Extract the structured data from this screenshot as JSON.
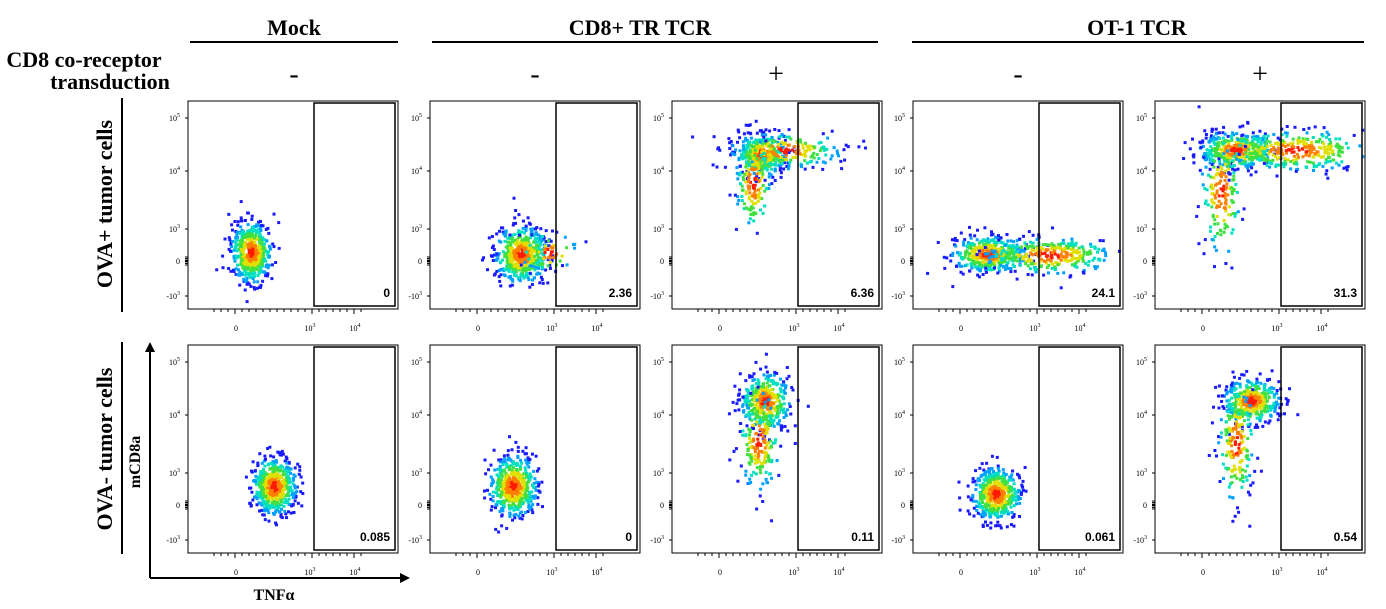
{
  "figure": {
    "row_header": {
      "line1": "CD8 co-receptor",
      "line2": "transduction"
    },
    "groups": [
      {
        "label": "Mock"
      },
      {
        "label": "CD8+ TR TCR"
      },
      {
        "label": "OT-1 TCR"
      }
    ],
    "columns": [
      {
        "group": 0,
        "sign": "-"
      },
      {
        "group": 1,
        "sign": "-"
      },
      {
        "group": 1,
        "sign": "+"
      },
      {
        "group": 2,
        "sign": "-"
      },
      {
        "group": 2,
        "sign": "+"
      }
    ],
    "rows": [
      {
        "label": "OVA+ tumor cells"
      },
      {
        "label": "OVA- tumor cells"
      }
    ],
    "axis_labels": {
      "x": "TNFα",
      "y": "mCD8a"
    },
    "ticks": {
      "x": [
        {
          "base": "0",
          "exp": ""
        },
        {
          "base": "10",
          "exp": "3"
        },
        {
          "base": "10",
          "exp": "4"
        }
      ],
      "y": [
        {
          "base": "10",
          "exp": "5"
        },
        {
          "base": "10",
          "exp": "4"
        },
        {
          "base": "10",
          "exp": "3"
        },
        {
          "base": "0",
          "exp": ""
        },
        {
          "base": "-10",
          "exp": "3"
        }
      ]
    },
    "gate_values": [
      [
        "0",
        "2.36",
        "6.36",
        "24.1",
        "31.3"
      ],
      [
        "0.085",
        "0",
        "0.11",
        "0.061",
        "0.54"
      ]
    ]
  },
  "colors": {
    "density": [
      "#1a1aff",
      "#00a0ff",
      "#00e0c0",
      "#40e040",
      "#e0e000",
      "#ff8000",
      "#ff1a00"
    ]
  },
  "chart_data": {
    "type": "scatter",
    "description_free": true,
    "panels": [
      {
        "row": "OVA+ tumor cells",
        "column": "Mock -",
        "gate_percent": 0
      },
      {
        "row": "OVA+ tumor cells",
        "column": "CD8+ TR TCR -",
        "gate_percent": 2.36
      },
      {
        "row": "OVA+ tumor cells",
        "column": "CD8+ TR TCR +",
        "gate_percent": 6.36
      },
      {
        "row": "OVA+ tumor cells",
        "column": "OT-1 TCR -",
        "gate_percent": 24.1
      },
      {
        "row": "OVA+ tumor cells",
        "column": "OT-1 TCR +",
        "gate_percent": 31.3
      },
      {
        "row": "OVA- tumor cells",
        "column": "Mock -",
        "gate_percent": 0.085
      },
      {
        "row": "OVA- tumor cells",
        "column": "CD8+ TR TCR -",
        "gate_percent": 0
      },
      {
        "row": "OVA- tumor cells",
        "column": "CD8+ TR TCR +",
        "gate_percent": 0.11
      },
      {
        "row": "OVA- tumor cells",
        "column": "OT-1 TCR -",
        "gate_percent": 0.061
      },
      {
        "row": "OVA- tumor cells",
        "column": "OT-1 TCR +",
        "gate_percent": 0.54
      }
    ]
  }
}
